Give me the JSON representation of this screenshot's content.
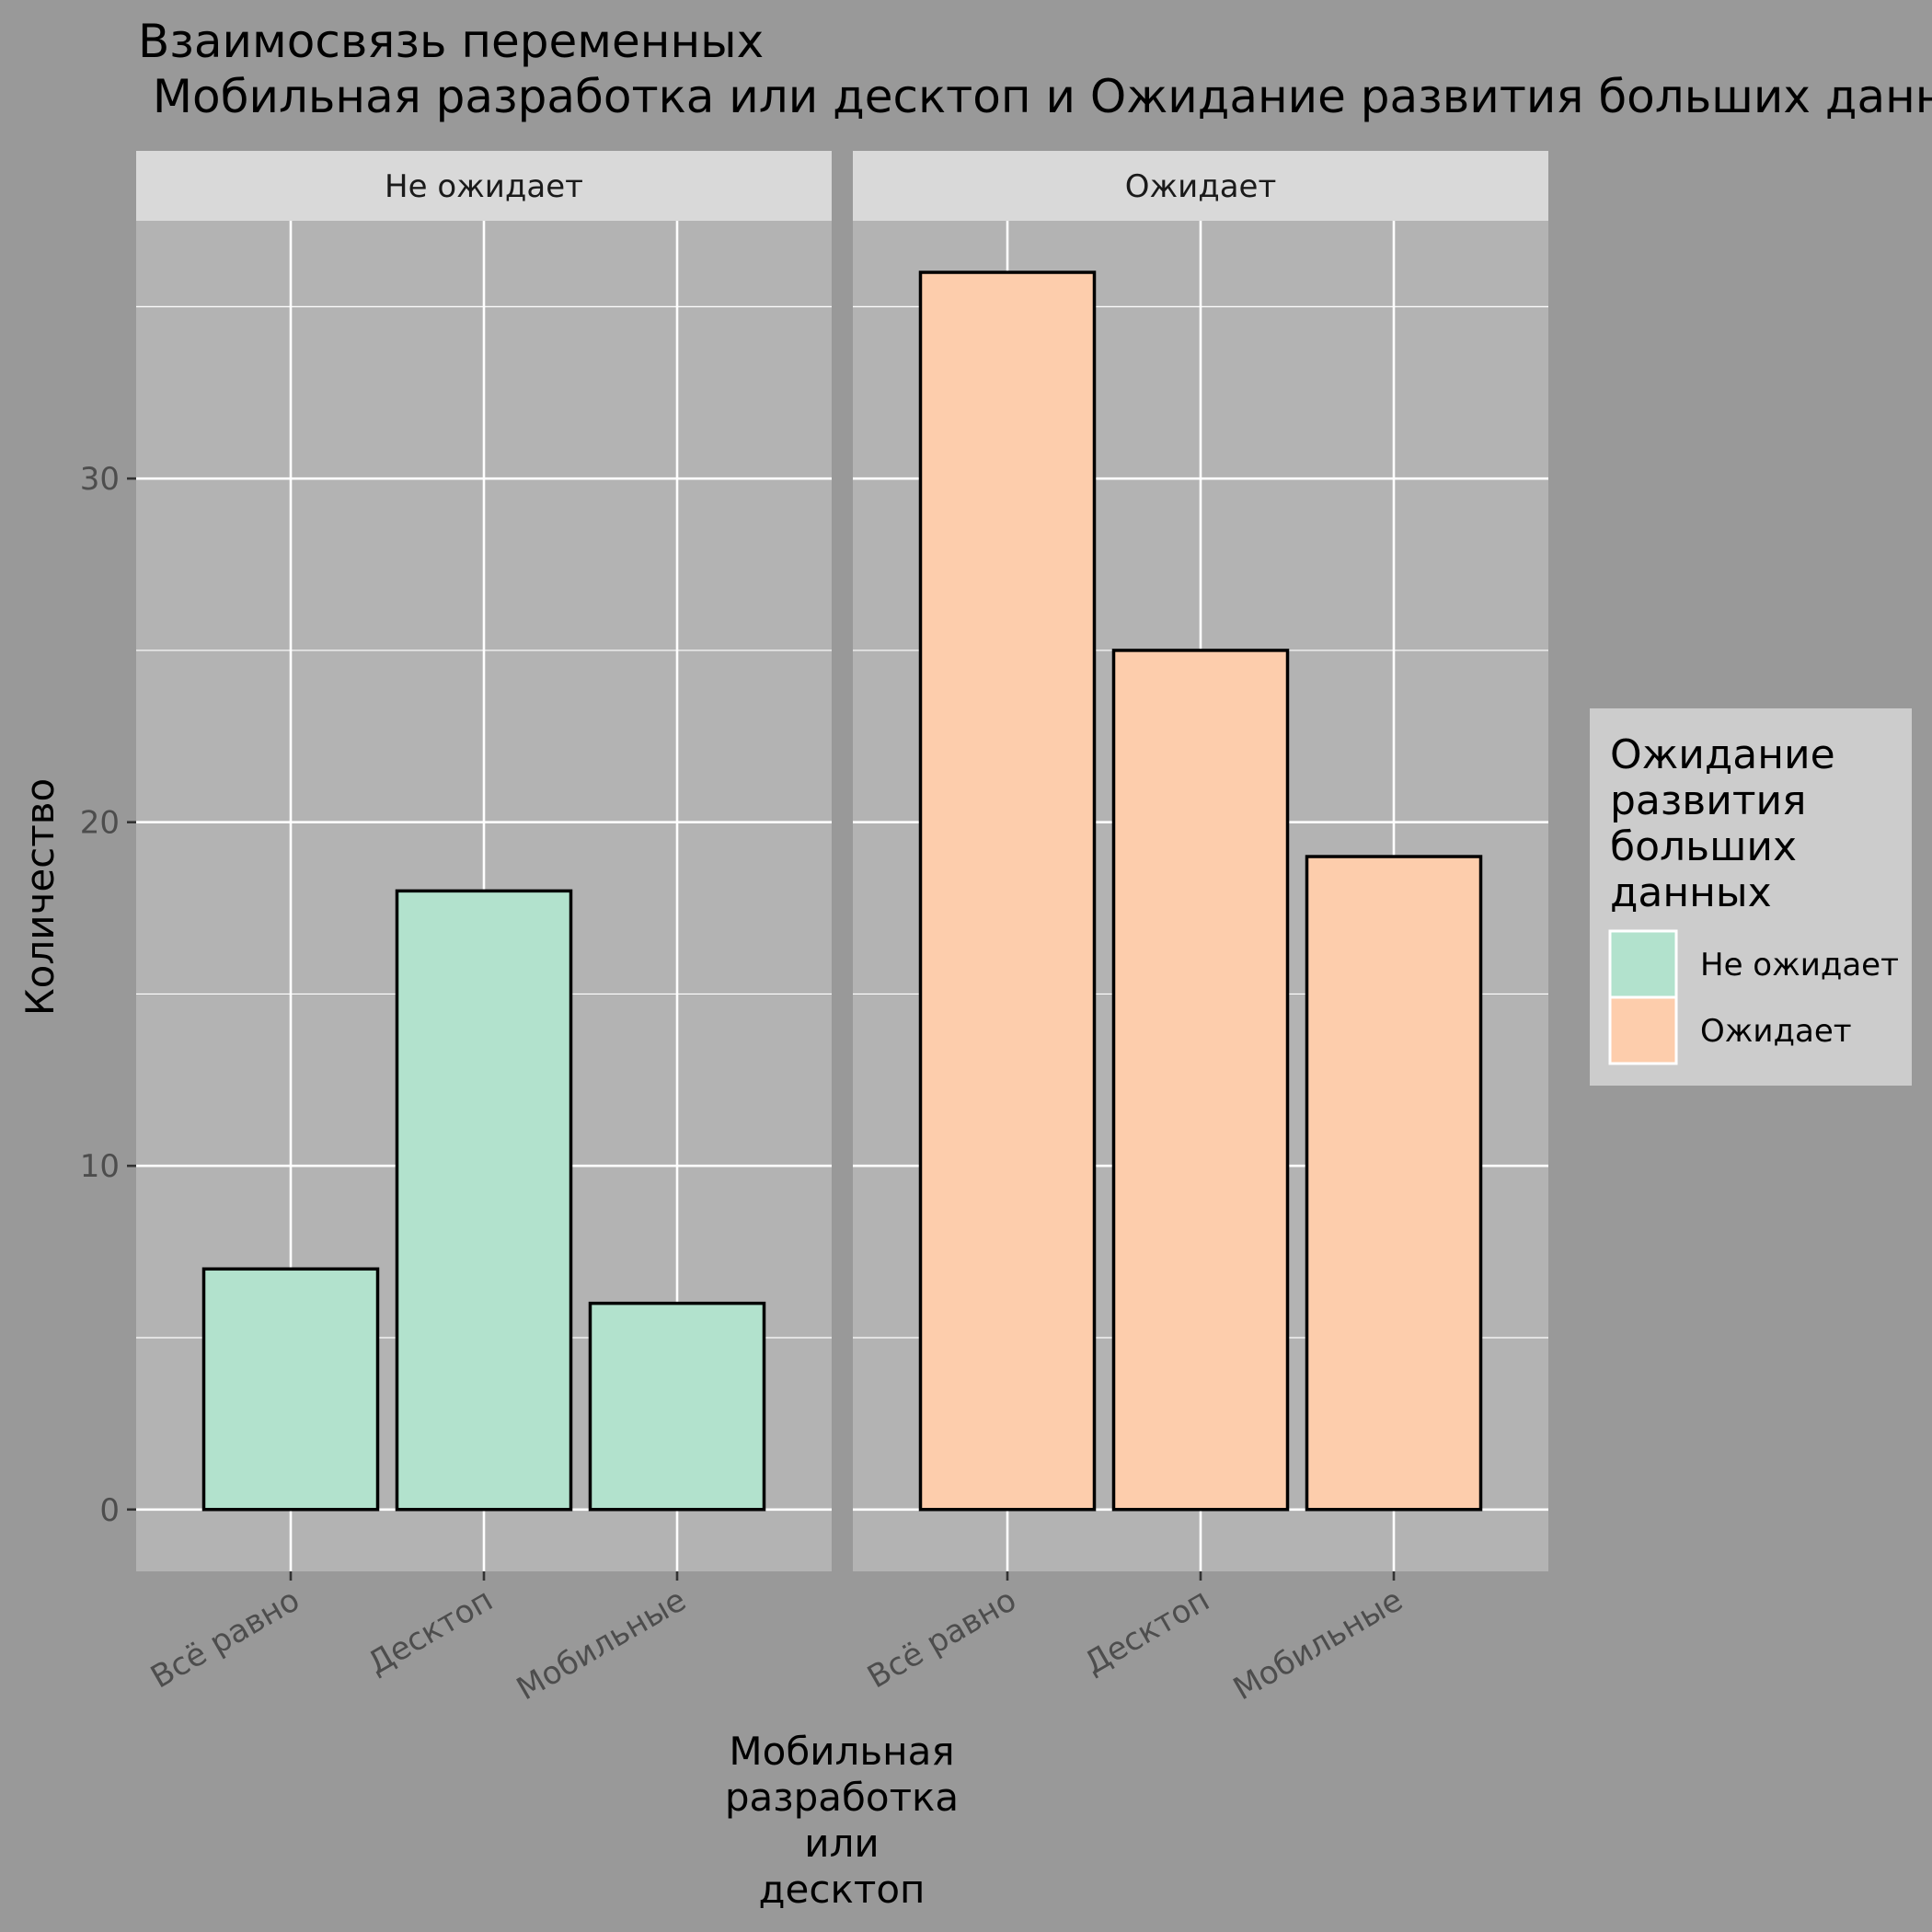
{
  "chart_data": {
    "type": "bar",
    "title_lines": [
      "Взаимосвязь переменных",
      " Мобильная разработка или десктоп и Ожидание развития больших данных"
    ],
    "xlabel_lines": [
      "Мобильная",
      "разработка",
      "или",
      "десктоп"
    ],
    "ylabel": "Количество",
    "categories": [
      "Всё равно",
      "Десктоп",
      "Мобильные"
    ],
    "ylim": [
      -1.8,
      37.5
    ],
    "yticks": [
      0,
      10,
      20,
      30
    ],
    "grid": true,
    "facets": [
      {
        "label": "Не ожидает",
        "series_index": 0
      },
      {
        "label": "Ожидает",
        "series_index": 1
      }
    ],
    "series": [
      {
        "name": "Не ожидает",
        "values": [
          7,
          18,
          6
        ],
        "color": "#b2e2cd"
      },
      {
        "name": "Ожидает",
        "values": [
          36,
          25,
          19
        ],
        "color": "#fdcdac"
      }
    ],
    "legend": {
      "title_lines": [
        "Ожидание",
        "развития",
        "больших",
        "данных"
      ],
      "position": "right"
    },
    "colors": {
      "background": "#999999",
      "panel": "#b3b3b3",
      "strip": "#d9d9d9",
      "legend_bg": "#cccccc",
      "gridline": "#ffffff",
      "bar_outline": "#000000"
    }
  }
}
